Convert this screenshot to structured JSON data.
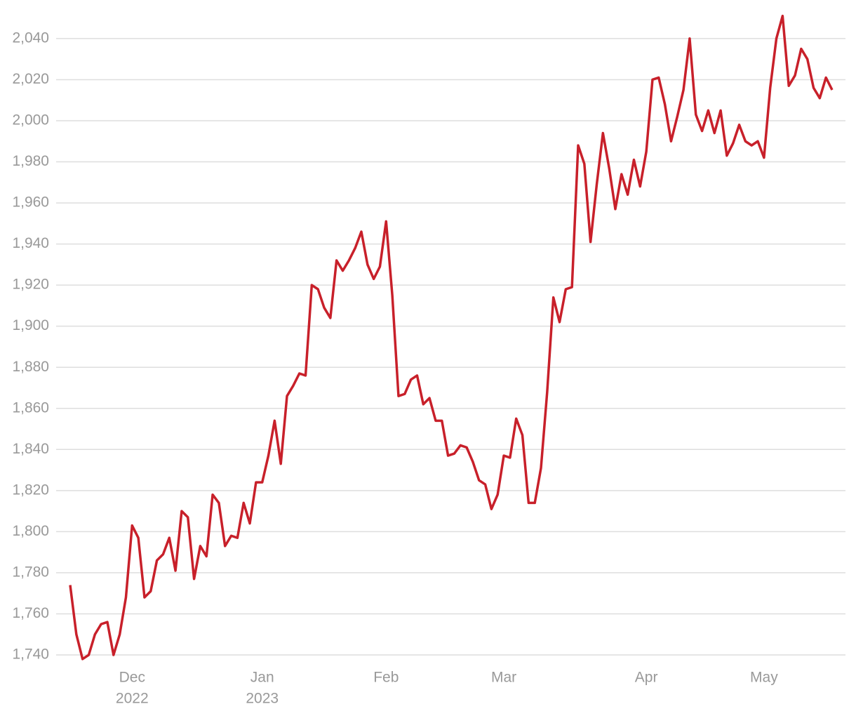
{
  "chart_data": {
    "type": "line",
    "color": "#c8202a",
    "grid": true,
    "ylim": [
      1740,
      2055
    ],
    "yticks": [
      {
        "value": 1740,
        "label": "1,740"
      },
      {
        "value": 1760,
        "label": "1,760"
      },
      {
        "value": 1780,
        "label": "1,780"
      },
      {
        "value": 1800,
        "label": "1,800"
      },
      {
        "value": 1820,
        "label": "1,820"
      },
      {
        "value": 1840,
        "label": "1,840"
      },
      {
        "value": 1860,
        "label": "1,860"
      },
      {
        "value": 1880,
        "label": "1,880"
      },
      {
        "value": 1900,
        "label": "1,900"
      },
      {
        "value": 1920,
        "label": "1,920"
      },
      {
        "value": 1940,
        "label": "1,940"
      },
      {
        "value": 1960,
        "label": "1,960"
      },
      {
        "value": 1980,
        "label": "1,980"
      },
      {
        "value": 2000,
        "label": "2,000"
      },
      {
        "value": 2020,
        "label": "2,020"
      },
      {
        "value": 2040,
        "label": "2,040"
      }
    ],
    "categories": [
      null,
      null,
      null,
      null,
      null,
      null,
      null,
      null,
      null,
      null,
      "Dec",
      null,
      null,
      null,
      null,
      null,
      null,
      null,
      null,
      null,
      null,
      null,
      null,
      null,
      null,
      null,
      null,
      null,
      null,
      null,
      null,
      "Jan",
      null,
      null,
      null,
      null,
      null,
      null,
      null,
      null,
      null,
      null,
      null,
      null,
      null,
      null,
      null,
      null,
      null,
      null,
      null,
      "Feb",
      null,
      null,
      null,
      null,
      null,
      null,
      null,
      null,
      null,
      null,
      null,
      null,
      null,
      null,
      null,
      null,
      null,
      null,
      "Mar",
      null,
      null,
      null,
      null,
      null,
      null,
      null,
      null,
      null,
      null,
      null,
      null,
      null,
      null,
      null,
      null,
      null,
      null,
      null,
      null,
      null,
      null,
      "Apr",
      null,
      null,
      null,
      null,
      null,
      null,
      null,
      null,
      null,
      null,
      null,
      null,
      null,
      null,
      null,
      null,
      null,
      null,
      "May",
      null,
      null,
      null,
      null,
      null,
      null,
      null,
      null,
      null,
      null,
      null
    ],
    "x_sublabels": [
      null,
      null,
      null,
      null,
      null,
      null,
      null,
      null,
      null,
      null,
      "2022",
      null,
      null,
      null,
      null,
      null,
      null,
      null,
      null,
      null,
      null,
      null,
      null,
      null,
      null,
      null,
      null,
      null,
      null,
      null,
      null,
      "2023",
      null,
      null,
      null,
      null,
      null,
      null,
      null,
      null,
      null,
      null,
      null,
      null,
      null,
      null,
      null,
      null,
      null,
      null,
      null,
      null,
      null,
      null,
      null,
      null,
      null,
      null,
      null,
      null,
      null,
      null,
      null,
      null,
      null,
      null,
      null,
      null,
      null,
      null,
      null,
      null,
      null,
      null,
      null,
      null,
      null,
      null,
      null,
      null,
      null,
      null,
      null,
      null,
      null,
      null,
      null,
      null,
      null,
      null,
      null,
      null,
      null,
      null,
      null,
      null,
      null,
      null,
      null,
      null,
      null,
      null,
      null,
      null,
      null,
      null,
      null,
      null,
      null,
      null,
      null,
      null,
      null,
      null,
      null,
      null,
      null,
      null,
      null,
      null,
      null,
      null,
      null,
      null
    ],
    "values": [
      1774,
      1750,
      1738,
      1740,
      1750,
      1755,
      1756,
      1740,
      1750,
      1768,
      1803,
      1797,
      1768,
      1771,
      1786,
      1789,
      1797,
      1781,
      1810,
      1807,
      1777,
      1793,
      1788,
      1818,
      1814,
      1793,
      1798,
      1797,
      1814,
      1804,
      1824,
      1824,
      1837,
      1854,
      1833,
      1866,
      1871,
      1877,
      1876,
      1920,
      1918,
      1909,
      1904,
      1932,
      1927,
      1932,
      1938,
      1946,
      1930,
      1923,
      1929,
      1951,
      1915,
      1866,
      1867,
      1874,
      1876,
      1862,
      1865,
      1854,
      1854,
      1837,
      1838,
      1842,
      1841,
      1834,
      1825,
      1823,
      1811,
      1818,
      1837,
      1836,
      1855,
      1847,
      1814,
      1814,
      1831,
      1868,
      1914,
      1902,
      1918,
      1919,
      1988,
      1979,
      1941,
      1969,
      1994,
      1977,
      1957,
      1974,
      1964,
      1981,
      1968,
      1985,
      2020,
      2021,
      2008,
      1990,
      2002,
      2015,
      2040,
      2003,
      1995,
      2005,
      1994,
      2005,
      1983,
      1989,
      1998,
      1990,
      1988,
      1990,
      1982,
      2016,
      2040,
      2051,
      2017,
      2022,
      2035,
      2030,
      2016,
      2011,
      2021,
      2015
    ]
  }
}
